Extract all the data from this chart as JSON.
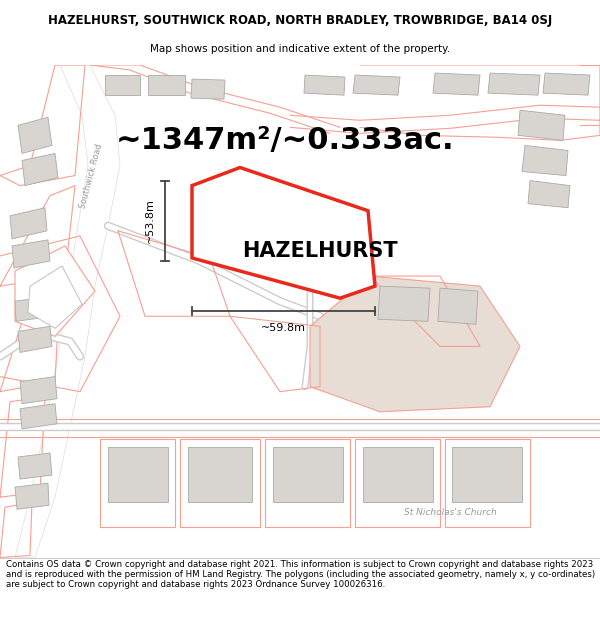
{
  "title": "HAZELHURST, SOUTHWICK ROAD, NORTH BRADLEY, TROWBRIDGE, BA14 0SJ",
  "subtitle": "Map shows position and indicative extent of the property.",
  "area_text": "~1347m²/~0.333ac.",
  "property_label": "HAZELHURST",
  "dim1_label": "~53.8m",
  "dim2_label": "~59.8m",
  "copyright_text": "Contains OS data © Crown copyright and database right 2021. This information is subject to Crown copyright and database rights 2023 and is reproduced with the permission of HM Land Registry. The polygons (including the associated geometry, namely x, y co-ordinates) are subject to Crown copyright and database rights 2023 Ordnance Survey 100026316.",
  "map_bg": "#ffffff",
  "parcel_color": "#f5c0b8",
  "building_color": "#d8d5d0",
  "building_edge": "#aaaaaa",
  "parcel_edge": "#f5a090",
  "property_fill": "#ffffff",
  "property_edge": "#e8291c",
  "dim_line_color": "#444444",
  "street_label_color": "#999999",
  "church_label_color": "#999999",
  "title_fontsize": 8.5,
  "subtitle_fontsize": 7.5,
  "area_fontsize": 22,
  "label_fontsize": 15,
  "dim_fontsize": 8,
  "copyright_fontsize": 6.2
}
